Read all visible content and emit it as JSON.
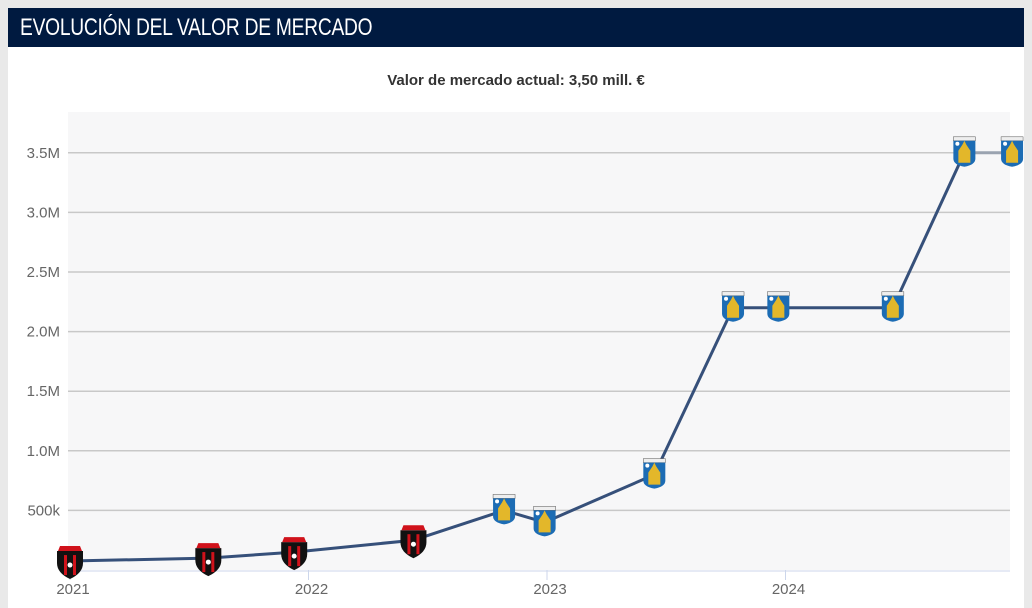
{
  "header": {
    "title": "EVOLUCIÓN DEL VALOR DE MERCADO"
  },
  "subtitle": "Valor de mercado actual: 3,50 mill. €",
  "colors": {
    "header_bg": "#001a40",
    "line": "#36507a",
    "grid": "#c8c8c8",
    "plot_bg": "#f7f7f8"
  },
  "chart_data": {
    "type": "line",
    "title": "Valor de mercado actual: 3,50 mill. €",
    "xlabel": "",
    "ylabel": "",
    "ylim": [
      0,
      3700000
    ],
    "xlim": [
      "2021-01-01",
      "2024-12-31"
    ],
    "y_ticks": [
      {
        "v": 500000,
        "label": "500k"
      },
      {
        "v": 1000000,
        "label": "1.0M"
      },
      {
        "v": 1500000,
        "label": "1.5M"
      },
      {
        "v": 2000000,
        "label": "2.0M"
      },
      {
        "v": 2500000,
        "label": "2.5M"
      },
      {
        "v": 3000000,
        "label": "3.0M"
      },
      {
        "v": 3500000,
        "label": "3.5M"
      }
    ],
    "x_ticks": [
      {
        "v": 2021.0,
        "label": "2021"
      },
      {
        "v": 2022.0,
        "label": "2022"
      },
      {
        "v": 2023.0,
        "label": "2023"
      },
      {
        "v": 2024.0,
        "label": "2024"
      }
    ],
    "grid": true,
    "legend": "none",
    "points": [
      {
        "date": "2021-01",
        "x": 2021.0,
        "y": 75000,
        "club_icon": "alajuelense-crest-icon"
      },
      {
        "date": "2021-07",
        "x": 2021.58,
        "y": 100000,
        "club_icon": "alajuelense-crest-icon"
      },
      {
        "date": "2021-12",
        "x": 2021.94,
        "y": 150000,
        "club_icon": "alajuelense-crest-icon"
      },
      {
        "date": "2022-06",
        "x": 2022.44,
        "y": 250000,
        "club_icon": "alajuelense-crest-icon"
      },
      {
        "date": "2022-10",
        "x": 2022.82,
        "y": 500000,
        "club_icon": "westerlo-crest-icon"
      },
      {
        "date": "2022-12",
        "x": 2022.99,
        "y": 400000,
        "club_icon": "westerlo-crest-icon"
      },
      {
        "date": "2023-06",
        "x": 2023.45,
        "y": 800000,
        "club_icon": "westerlo-crest-icon"
      },
      {
        "date": "2023-10",
        "x": 2023.78,
        "y": 2200000,
        "club_icon": "westerlo-crest-icon"
      },
      {
        "date": "2023-12",
        "x": 2023.97,
        "y": 2200000,
        "club_icon": "westerlo-crest-icon"
      },
      {
        "date": "2024-06",
        "x": 2024.45,
        "y": 2200000,
        "club_icon": "westerlo-crest-icon"
      },
      {
        "date": "2024-10",
        "x": 2024.75,
        "y": 3500000,
        "club_icon": "westerlo-crest-icon"
      },
      {
        "date": "2024-12",
        "x": 2024.95,
        "y": 3500000,
        "club_icon": "westerlo-crest-icon"
      }
    ]
  }
}
